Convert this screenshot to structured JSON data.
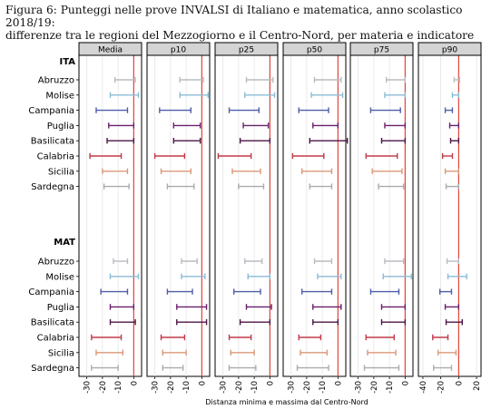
{
  "caption": {
    "line1": "Figura 6: Punteggi nelle prove INVALSI di Italiano e matematica, anno scolastico 2018/19:",
    "line2": "differenze tra le regioni del Mezzogiorno e il Centro-Nord, per materia e indicatore"
  },
  "chart_data": {
    "type": "range",
    "xlabel": "Distanza minima e massima dal Centro-Nord",
    "reference_line": 0,
    "reference_color": "#e0463b",
    "grid": true,
    "panels": [
      {
        "title": "Media",
        "xlim": [
          -35,
          5
        ],
        "ticks": [
          -30,
          -20,
          -10,
          0
        ]
      },
      {
        "title": "p10",
        "xlim": [
          -35,
          5
        ],
        "ticks": [
          -30,
          -20,
          -10,
          0
        ]
      },
      {
        "title": "p25",
        "xlim": [
          -35,
          5
        ],
        "ticks": [
          -30,
          -20,
          -10,
          0
        ]
      },
      {
        "title": "p50",
        "xlim": [
          -35,
          5
        ],
        "ticks": [
          -30,
          -20,
          -10,
          0
        ]
      },
      {
        "title": "p75",
        "xlim": [
          -35,
          5
        ],
        "ticks": [
          -30,
          -20,
          -10,
          0
        ]
      },
      {
        "title": "p90",
        "xlim": [
          -45,
          25
        ],
        "ticks": [
          -40,
          -20,
          0,
          20
        ]
      }
    ],
    "groups": [
      {
        "label": "ITA",
        "regions": [
          {
            "name": "Abruzzo",
            "color": "#b9bcc1",
            "ranges": [
              [
                -12,
                1
              ],
              [
                -14,
                1
              ],
              [
                -15,
                2
              ],
              [
                -15,
                2
              ],
              [
                -12,
                0
              ],
              [
                -5,
                1
              ]
            ]
          },
          {
            "name": "Molise",
            "color": "#8cbcd6",
            "ranges": [
              [
                -15,
                3
              ],
              [
                -14,
                4
              ],
              [
                -16,
                3
              ],
              [
                -17,
                3
              ],
              [
                -13,
                0
              ],
              [
                -7,
                0
              ]
            ]
          },
          {
            "name": "Campania",
            "color": "#4f5daa",
            "ranges": [
              [
                -24,
                -4
              ],
              [
                -27,
                -7
              ],
              [
                -26,
                -7
              ],
              [
                -25,
                -6
              ],
              [
                -22,
                -3
              ],
              [
                -15,
                -7
              ]
            ]
          },
          {
            "name": "Puglia",
            "color": "#6a1f6c",
            "ranges": [
              [
                -16,
                0
              ],
              [
                -18,
                -1
              ],
              [
                -17,
                -1
              ],
              [
                -16,
                0
              ],
              [
                -13,
                0
              ],
              [
                -10,
                0
              ]
            ]
          },
          {
            "name": "Basilicata",
            "color": "#4c1545",
            "ranges": [
              [
                -17,
                0
              ],
              [
                -18,
                -1
              ],
              [
                -19,
                0
              ],
              [
                -18,
                6
              ],
              [
                -15,
                0
              ],
              [
                -9,
                0
              ]
            ]
          },
          {
            "name": "Calabria",
            "color": "#c23b4a",
            "ranges": [
              [
                -28,
                -8
              ],
              [
                -30,
                -11
              ],
              [
                -33,
                -12
              ],
              [
                -29,
                -9
              ],
              [
                -25,
                -5
              ],
              [
                -18,
                -7
              ]
            ]
          },
          {
            "name": "Sicilia",
            "color": "#dc9878",
            "ranges": [
              [
                -20,
                -4
              ],
              [
                -26,
                -7
              ],
              [
                -24,
                -6
              ],
              [
                -23,
                -4
              ],
              [
                -21,
                -2
              ],
              [
                -15,
                0
              ]
            ]
          },
          {
            "name": "Sardegna",
            "color": "#a9abaf",
            "ranges": [
              [
                -19,
                -3
              ],
              [
                -22,
                -5
              ],
              [
                -20,
                -4
              ],
              [
                -18,
                -4
              ],
              [
                -17,
                -1
              ],
              [
                -14,
                0
              ]
            ]
          }
        ]
      },
      {
        "label": "MAT",
        "regions": [
          {
            "name": "Abruzzo",
            "color": "#b9bcc1",
            "ranges": [
              [
                -13,
                -4
              ],
              [
                -13,
                -3
              ],
              [
                -16,
                -5
              ],
              [
                -15,
                -4
              ],
              [
                -13,
                -1
              ],
              [
                -13,
                0
              ]
            ]
          },
          {
            "name": "Molise",
            "color": "#8cbcd6",
            "ranges": [
              [
                -15,
                3
              ],
              [
                -13,
                2
              ],
              [
                -14,
                0
              ],
              [
                -13,
                2
              ],
              [
                -14,
                4
              ],
              [
                -12,
                9
              ]
            ]
          },
          {
            "name": "Campania",
            "color": "#4f5daa",
            "ranges": [
              [
                -21,
                -4
              ],
              [
                -22,
                -6
              ],
              [
                -23,
                -6
              ],
              [
                -23,
                -4
              ],
              [
                -22,
                -4
              ],
              [
                -21,
                -8
              ]
            ]
          },
          {
            "name": "Puglia",
            "color": "#6a1f6c",
            "ranges": [
              [
                -15,
                0
              ],
              [
                -16,
                3
              ],
              [
                -15,
                1
              ],
              [
                -16,
                2
              ],
              [
                -15,
                0
              ],
              [
                -15,
                0
              ]
            ]
          },
          {
            "name": "Basilicata",
            "color": "#4c1545",
            "ranges": [
              [
                -15,
                1
              ],
              [
                -16,
                3
              ],
              [
                -19,
                0
              ],
              [
                -16,
                0
              ],
              [
                -15,
                0
              ],
              [
                -14,
                4
              ]
            ]
          },
          {
            "name": "Calabria",
            "color": "#c23b4a",
            "ranges": [
              [
                -27,
                -8
              ],
              [
                -26,
                -11
              ],
              [
                -26,
                -12
              ],
              [
                -25,
                -11
              ],
              [
                -25,
                -7
              ],
              [
                -29,
                -12
              ]
            ]
          },
          {
            "name": "Sicilia",
            "color": "#dc9878",
            "ranges": [
              [
                -24,
                -7
              ],
              [
                -25,
                -10
              ],
              [
                -25,
                -10
              ],
              [
                -24,
                -7
              ],
              [
                -24,
                -6
              ],
              [
                -23,
                -3
              ]
            ]
          },
          {
            "name": "Sardegna",
            "color": "#a9abaf",
            "ranges": [
              [
                -27,
                -10
              ],
              [
                -25,
                -12
              ],
              [
                -26,
                -9
              ],
              [
                -26,
                -6
              ],
              [
                -26,
                -4
              ],
              [
                -28,
                -8
              ]
            ]
          }
        ]
      }
    ]
  }
}
